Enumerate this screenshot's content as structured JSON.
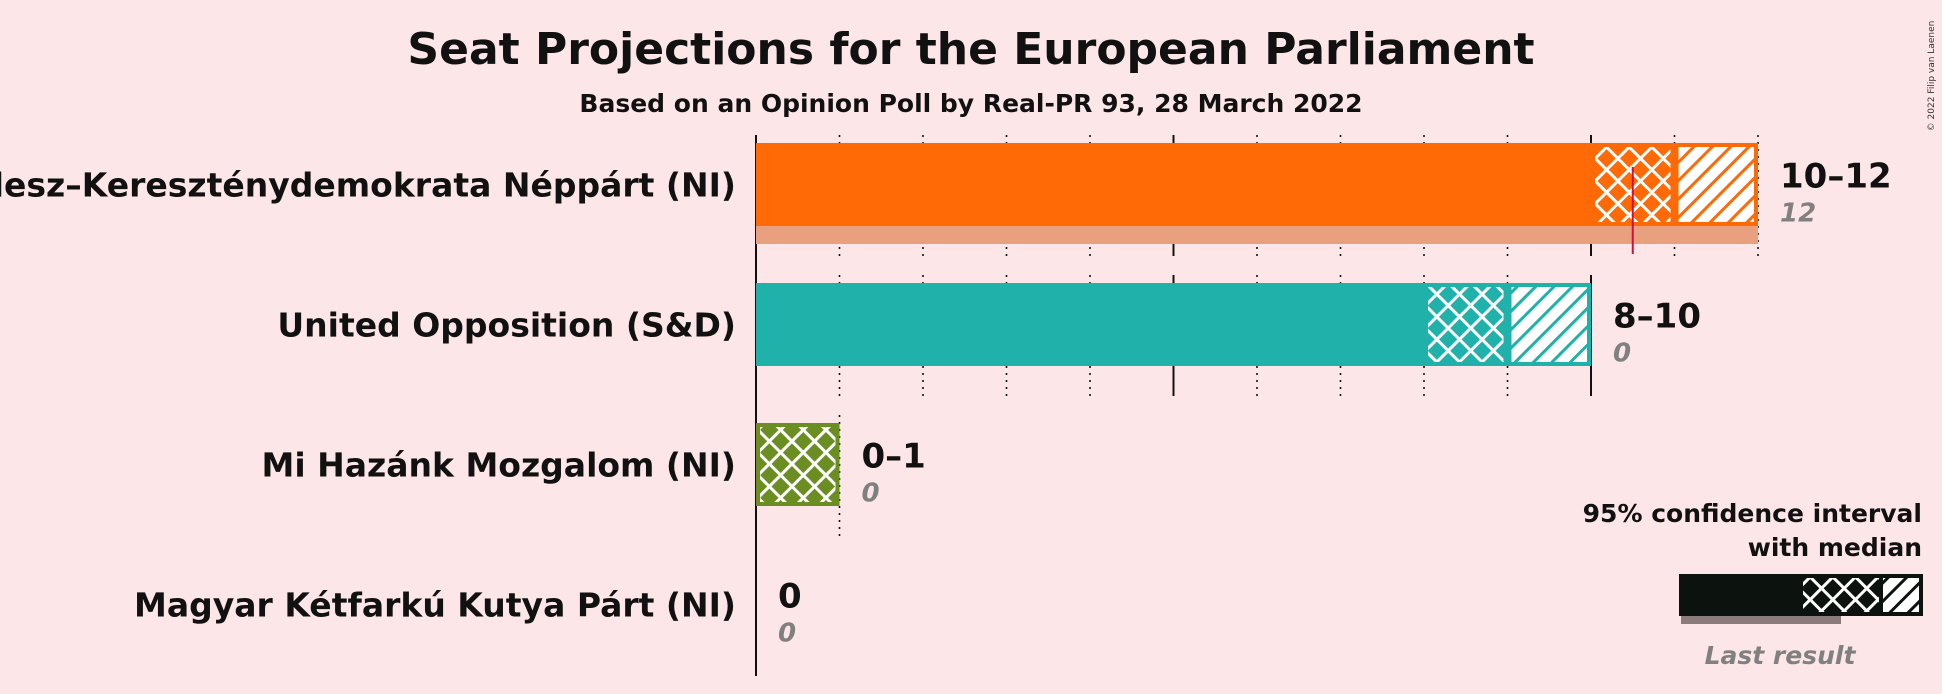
{
  "chart_data": {
    "type": "bar",
    "orientation": "horizontal",
    "title": "Seat Projections for the European Parliament",
    "subtitle": "Based on an Opinion Poll by Real-PR 93, 28 March 2022",
    "xlim": [
      0,
      12
    ],
    "majority_line": 10.5,
    "parties": [
      {
        "name": "Fidesz–Kereszténydemokrata Néppárt (NI)",
        "low": 10,
        "median": 11,
        "high": 12,
        "last": 12,
        "range_label": "10–12",
        "last_label": "12",
        "color": "#ff6a06",
        "last_color": "#e9a07e"
      },
      {
        "name": "United Opposition (S&D)",
        "low": 8,
        "median": 9,
        "high": 10,
        "last": 0,
        "range_label": "8–10",
        "last_label": "0",
        "color": "#20b2aa",
        "last_color": "#9ed8d4"
      },
      {
        "name": "Mi Hazánk Mozgalom (NI)",
        "low": 0,
        "median": 0,
        "high": 1,
        "last": 0,
        "range_label": "0–1",
        "last_label": "0",
        "color": "#6b8e23",
        "last_color": "#b8c79c"
      },
      {
        "name": "Magyar Kétfarkú Kutya Párt (NI)",
        "low": 0,
        "median": 0,
        "high": 0,
        "last": 0,
        "range_label": "0",
        "last_label": "0",
        "color": "#888888",
        "last_color": "#bbbbbb"
      }
    ]
  },
  "legend": {
    "line1": "95% confidence interval",
    "line2": "with median",
    "last_result": "Last result"
  },
  "copyright": "© 2022 Filip van Laenen"
}
